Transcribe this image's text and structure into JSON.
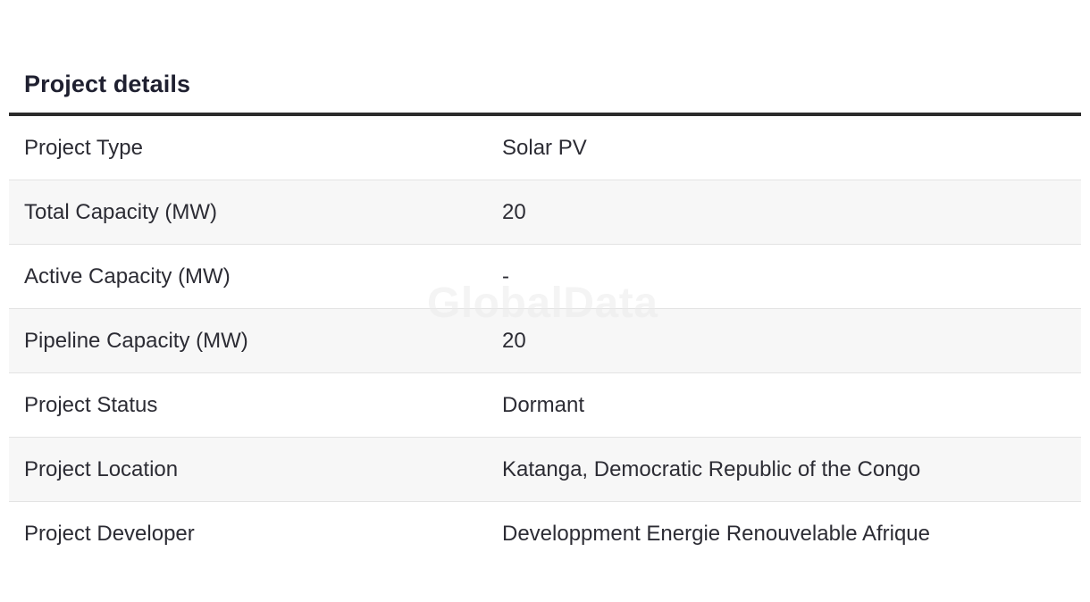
{
  "section": {
    "title": "Project details"
  },
  "watermark": "GlobalData",
  "rows": [
    {
      "label": "Project Type",
      "value": "Solar PV"
    },
    {
      "label": "Total Capacity (MW)",
      "value": "20"
    },
    {
      "label": "Active Capacity (MW)",
      "value": "-"
    },
    {
      "label": "Pipeline Capacity (MW)",
      "value": "20"
    },
    {
      "label": "Project Status",
      "value": "Dormant"
    },
    {
      "label": "Project Location",
      "value": "Katanga, Democratic Republic of the Congo"
    },
    {
      "label": "Project Developer",
      "value": "Developpment Energie Renouvelable Afrique"
    }
  ]
}
